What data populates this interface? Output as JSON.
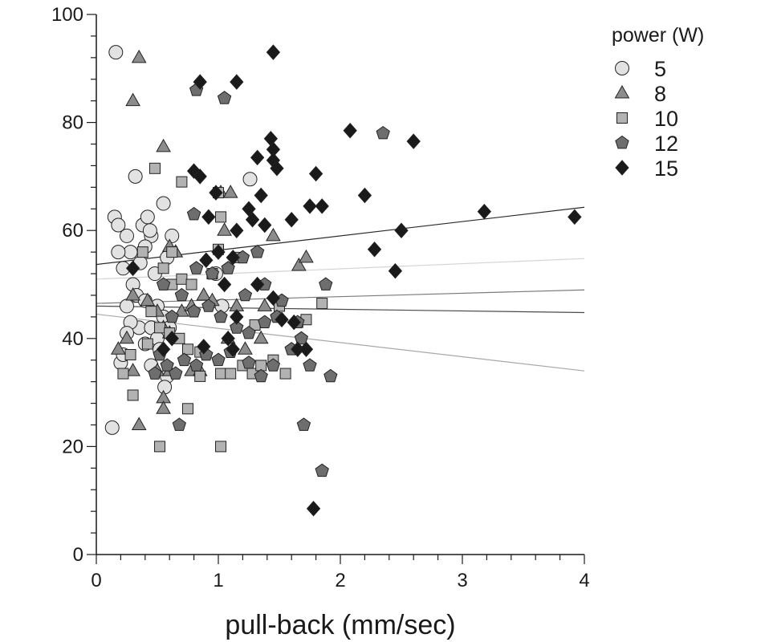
{
  "chart_data": {
    "type": "scatter",
    "xlabel": "pull-back (mm/sec)",
    "ylabel": "",
    "xlim": [
      0,
      4
    ],
    "ylim": [
      0,
      100
    ],
    "x_ticks": [
      "0",
      "1",
      "2",
      "3",
      "4"
    ],
    "y_ticks": [
      "0",
      "20",
      "40",
      "60",
      "80",
      "100"
    ],
    "grid": false,
    "legend": {
      "title": "power (W)",
      "placement": "top-right"
    },
    "series": [
      {
        "name": "5",
        "marker": "circle",
        "color": "#e2e2e2",
        "points": [
          [
            0.16,
            93
          ],
          [
            0.13,
            23.5
          ],
          [
            0.32,
            70
          ],
          [
            0.15,
            62.5
          ],
          [
            0.18,
            61
          ],
          [
            0.25,
            59
          ],
          [
            0.38,
            61
          ],
          [
            0.42,
            62.5
          ],
          [
            0.55,
            65
          ],
          [
            0.58,
            55
          ],
          [
            0.62,
            59
          ],
          [
            0.45,
            59
          ],
          [
            0.28,
            56
          ],
          [
            0.36,
            54
          ],
          [
            0.22,
            53
          ],
          [
            0.18,
            56
          ],
          [
            0.4,
            57
          ],
          [
            0.44,
            60
          ],
          [
            0.48,
            52
          ],
          [
            0.3,
            50
          ],
          [
            0.33,
            48
          ],
          [
            0.25,
            46
          ],
          [
            0.4,
            47
          ],
          [
            0.5,
            46
          ],
          [
            0.55,
            44
          ],
          [
            0.6,
            42
          ],
          [
            0.35,
            42
          ],
          [
            0.28,
            43
          ],
          [
            0.25,
            41
          ],
          [
            0.4,
            39
          ],
          [
            0.45,
            35
          ],
          [
            0.2,
            35.5
          ],
          [
            0.22,
            37
          ],
          [
            0.58,
            33
          ],
          [
            0.56,
            31
          ],
          [
            0.45,
            42
          ],
          [
            0.5,
            40
          ],
          [
            0.52,
            38
          ],
          [
            1.26,
            69.5
          ],
          [
            0.98,
            52
          ],
          [
            1.03,
            46
          ]
        ],
        "trend": [
          51,
          54.8
        ]
      },
      {
        "name": "8",
        "marker": "triangle",
        "color": "#8c8c8c",
        "points": [
          [
            0.35,
            92
          ],
          [
            0.3,
            84
          ],
          [
            0.55,
            75.5
          ],
          [
            0.6,
            57
          ],
          [
            0.65,
            56
          ],
          [
            0.3,
            48
          ],
          [
            0.42,
            47
          ],
          [
            0.5,
            45
          ],
          [
            0.55,
            42
          ],
          [
            0.6,
            41
          ],
          [
            0.18,
            38
          ],
          [
            0.25,
            40
          ],
          [
            0.3,
            34
          ],
          [
            0.5,
            34
          ],
          [
            0.6,
            34
          ],
          [
            0.55,
            29
          ],
          [
            0.55,
            27
          ],
          [
            0.35,
            24
          ],
          [
            0.78,
            34
          ],
          [
            0.85,
            34
          ],
          [
            1.02,
            67
          ],
          [
            1.1,
            67
          ],
          [
            1.05,
            60
          ],
          [
            0.88,
            48
          ],
          [
            0.95,
            47
          ],
          [
            1.15,
            46
          ],
          [
            1.22,
            38
          ],
          [
            1.35,
            40
          ],
          [
            1.38,
            46
          ],
          [
            1.45,
            59
          ],
          [
            1.66,
            53.5
          ],
          [
            1.72,
            55
          ],
          [
            1.08,
            40
          ],
          [
            0.7,
            45
          ],
          [
            0.78,
            46
          ]
        ],
        "trend": [
          46.5,
          49
        ]
      },
      {
        "name": "10",
        "marker": "square",
        "color": "#b2b2b2",
        "points": [
          [
            0.48,
            71.5
          ],
          [
            0.7,
            69
          ],
          [
            1.0,
            67
          ],
          [
            1.02,
            62.5
          ],
          [
            0.62,
            56
          ],
          [
            0.55,
            53
          ],
          [
            0.62,
            50
          ],
          [
            0.7,
            51
          ],
          [
            0.78,
            50
          ],
          [
            0.38,
            56
          ],
          [
            0.45,
            45
          ],
          [
            0.52,
            42
          ],
          [
            0.6,
            41
          ],
          [
            0.68,
            40
          ],
          [
            0.75,
            38
          ],
          [
            0.42,
            39
          ],
          [
            0.28,
            37
          ],
          [
            0.22,
            33.5
          ],
          [
            0.3,
            29.5
          ],
          [
            0.52,
            20
          ],
          [
            0.75,
            27
          ],
          [
            1.02,
            20
          ],
          [
            0.85,
            33
          ],
          [
            1.02,
            33.5
          ],
          [
            1.1,
            33.5
          ],
          [
            1.2,
            35
          ],
          [
            1.28,
            33.5
          ],
          [
            1.35,
            35
          ],
          [
            1.45,
            36
          ],
          [
            1.55,
            33.5
          ],
          [
            1.3,
            42.5
          ],
          [
            1.5,
            46
          ],
          [
            1.65,
            43
          ],
          [
            1.72,
            43.5
          ],
          [
            1.85,
            46.5
          ],
          [
            1.0,
            56.5
          ],
          [
            0.95,
            52
          ],
          [
            1.15,
            55
          ],
          [
            0.85,
            37.5
          ]
        ],
        "trend": [
          46,
          44.8
        ]
      },
      {
        "name": "12",
        "marker": "pentagon",
        "color": "#6e6e6e",
        "points": [
          [
            0.82,
            86
          ],
          [
            1.05,
            84.5
          ],
          [
            2.35,
            78
          ],
          [
            0.8,
            63
          ],
          [
            0.82,
            53
          ],
          [
            0.95,
            52
          ],
          [
            1.08,
            53
          ],
          [
            1.2,
            55
          ],
          [
            1.32,
            56
          ],
          [
            0.55,
            50
          ],
          [
            0.62,
            44
          ],
          [
            0.7,
            48
          ],
          [
            0.8,
            45
          ],
          [
            0.92,
            46
          ],
          [
            1.02,
            44
          ],
          [
            1.15,
            42
          ],
          [
            1.25,
            41
          ],
          [
            1.38,
            43
          ],
          [
            1.48,
            44
          ],
          [
            0.52,
            37
          ],
          [
            0.58,
            35
          ],
          [
            0.65,
            33.5
          ],
          [
            0.72,
            36
          ],
          [
            0.82,
            35
          ],
          [
            0.9,
            37
          ],
          [
            1.0,
            36
          ],
          [
            1.1,
            37.5
          ],
          [
            1.25,
            35.5
          ],
          [
            1.35,
            33
          ],
          [
            1.45,
            35
          ],
          [
            1.6,
            38
          ],
          [
            1.68,
            40
          ],
          [
            1.75,
            35
          ],
          [
            1.92,
            33
          ],
          [
            1.88,
            50
          ],
          [
            1.7,
            24
          ],
          [
            0.68,
            24
          ],
          [
            1.85,
            15.5
          ],
          [
            1.38,
            50
          ],
          [
            1.52,
            47
          ],
          [
            1.65,
            43
          ],
          [
            1.22,
            48
          ],
          [
            0.48,
            33.5
          ]
        ],
        "trend": [
          44.5,
          34
        ]
      },
      {
        "name": "15",
        "marker": "diamond",
        "color": "#1a1a1a",
        "points": [
          [
            1.45,
            93
          ],
          [
            0.85,
            87.5
          ],
          [
            1.15,
            87.5
          ],
          [
            2.08,
            78.5
          ],
          [
            2.6,
            76.5
          ],
          [
            1.43,
            77
          ],
          [
            1.45,
            75
          ],
          [
            1.32,
            73.5
          ],
          [
            1.45,
            73
          ],
          [
            1.48,
            71.5
          ],
          [
            0.8,
            71
          ],
          [
            0.85,
            70
          ],
          [
            1.8,
            70.5
          ],
          [
            0.98,
            67
          ],
          [
            1.35,
            66.5
          ],
          [
            2.2,
            66.5
          ],
          [
            1.25,
            64
          ],
          [
            1.75,
            64.5
          ],
          [
            1.85,
            64.5
          ],
          [
            0.92,
            62.5
          ],
          [
            1.28,
            62
          ],
          [
            1.6,
            62
          ],
          [
            1.38,
            61
          ],
          [
            3.18,
            63.5
          ],
          [
            3.92,
            62.5
          ],
          [
            1.15,
            60
          ],
          [
            2.5,
            60
          ],
          [
            1.0,
            56
          ],
          [
            1.12,
            55
          ],
          [
            2.28,
            56.5
          ],
          [
            0.9,
            54.5
          ],
          [
            1.32,
            50
          ],
          [
            0.3,
            53
          ],
          [
            2.45,
            52.5
          ],
          [
            1.45,
            47.5
          ],
          [
            1.52,
            43.5
          ],
          [
            1.62,
            43
          ],
          [
            1.15,
            44
          ],
          [
            1.08,
            40
          ],
          [
            1.12,
            38
          ],
          [
            0.62,
            40
          ],
          [
            0.55,
            38
          ],
          [
            0.88,
            38.5
          ],
          [
            1.65,
            38
          ],
          [
            1.72,
            38
          ],
          [
            1.78,
            8.5
          ],
          [
            1.05,
            50
          ]
        ],
        "trend": [
          53.7,
          64.3
        ]
      }
    ]
  }
}
